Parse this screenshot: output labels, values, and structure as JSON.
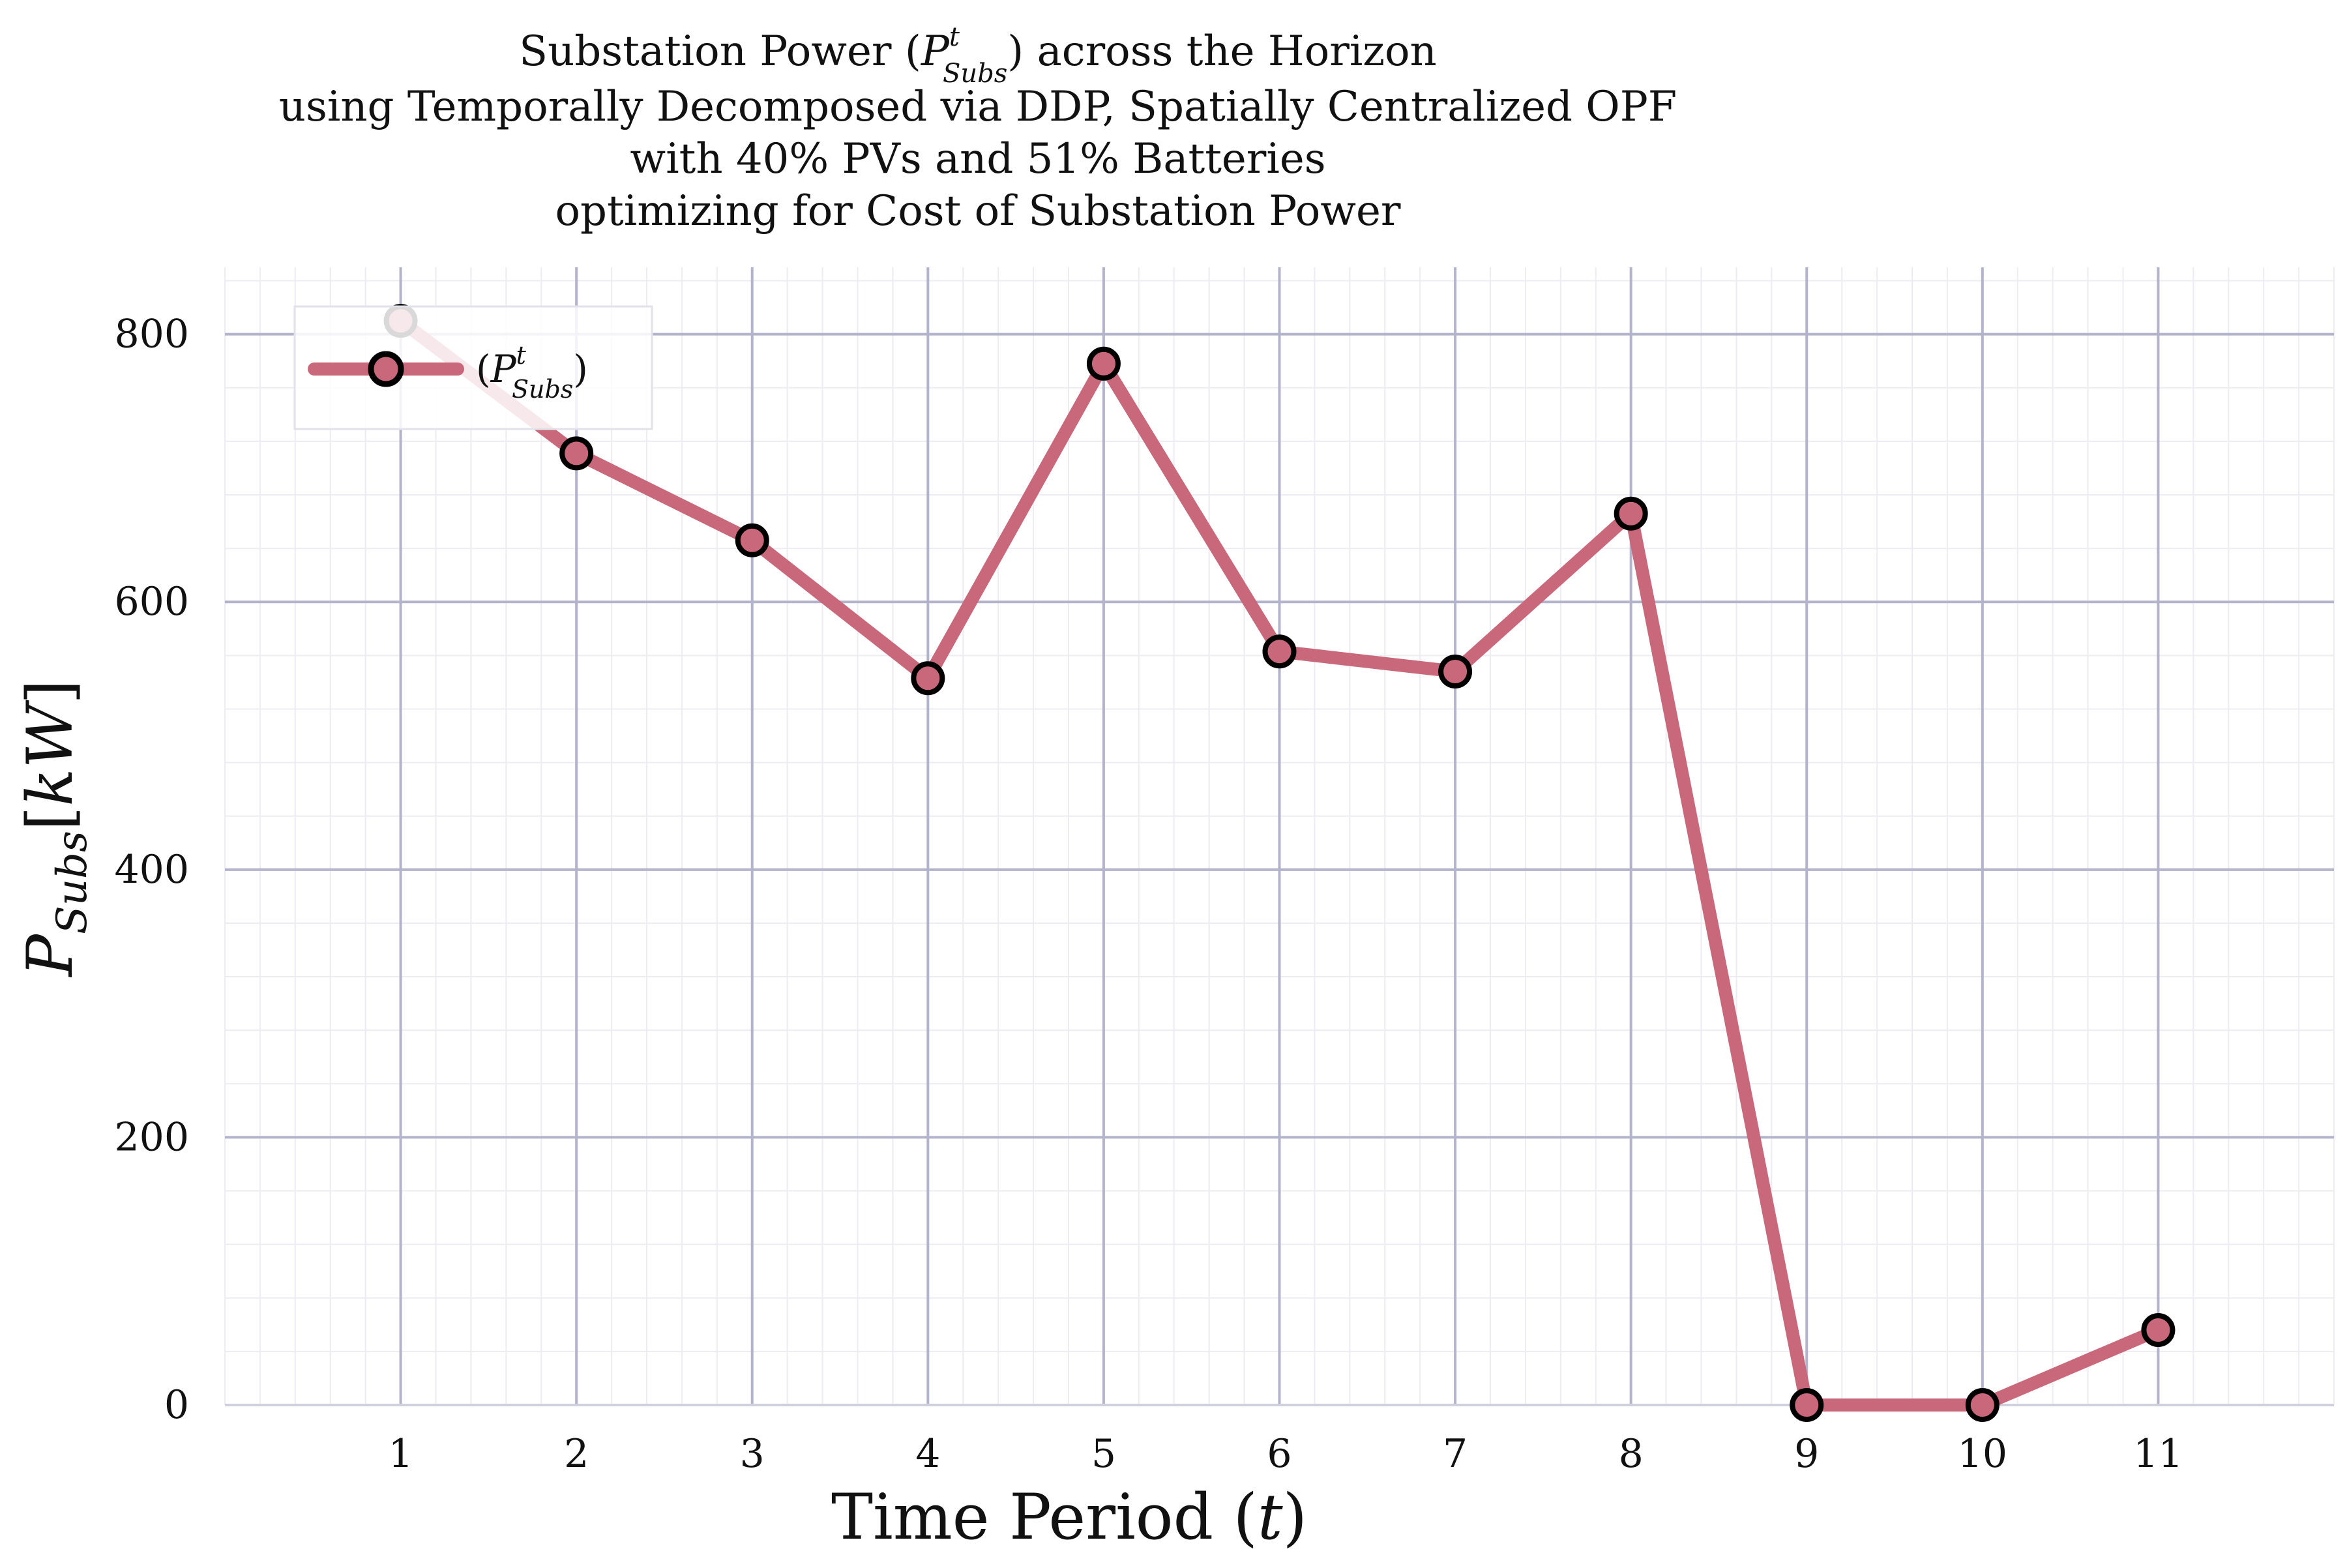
{
  "chart_data": {
    "type": "line",
    "title_lines": [
      "Substation Power (P",
      "using Temporally Decomposed via DDP, Spatially Centralized OPF",
      "with 40% PVs and 51% Batteries",
      "optimizing for Cost of Substation Power"
    ],
    "title_math": {
      "pre": "Substation Power (",
      "var": "P",
      "sup": "t",
      "sub": "Subs",
      "post": ") across the Horizon"
    },
    "xlabel": {
      "text": "Time Period (",
      "var": "t",
      "post": ")"
    },
    "ylabel": {
      "var": "P",
      "sub": "Subs",
      "unit_open": "[",
      "unit": "kW",
      "unit_close": "]"
    },
    "x": [
      1,
      2,
      3,
      4,
      5,
      6,
      7,
      8,
      9,
      10,
      11
    ],
    "x_tick_labels": [
      "1",
      "2",
      "3",
      "4",
      "5",
      "6",
      "7",
      "8",
      "9",
      "10",
      "11"
    ],
    "y_ticks": [
      0,
      200,
      400,
      600,
      800
    ],
    "y_tick_labels": [
      "0",
      "200",
      "400",
      "600",
      "800"
    ],
    "xlim": [
      0,
      12
    ],
    "ylim": [
      0,
      850
    ],
    "grid": true,
    "legend_position": "top-left",
    "series": [
      {
        "legend": {
          "open": "(",
          "var": "P",
          "sup": "t",
          "sub": "Subs",
          "close": ")"
        },
        "color": "#c9687a",
        "marker_edge": "#000000",
        "values": [
          810,
          711,
          646,
          543,
          778,
          563,
          548,
          666,
          0,
          0,
          56
        ]
      }
    ],
    "colors": {
      "major_grid": "#b3b3cc",
      "minor_grid": "#ececf2",
      "axis_line": "#d0d0dc"
    }
  }
}
